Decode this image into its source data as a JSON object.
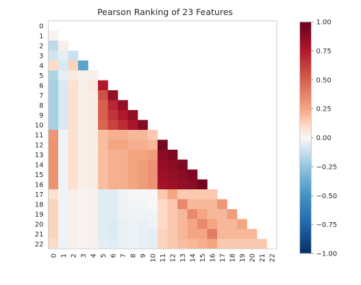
{
  "chart_data": {
    "type": "heatmap",
    "title": "Pearson Ranking of 23 Features",
    "subtitle": "",
    "xlabel": "",
    "ylabel": "",
    "labels": [
      "0",
      "1",
      "2",
      "3",
      "4",
      "5",
      "6",
      "7",
      "8",
      "9",
      "10",
      "11",
      "12",
      "13",
      "14",
      "15",
      "16",
      "17",
      "18",
      "19",
      "20",
      "21",
      "22"
    ],
    "mask": "lower-triangle",
    "grid": false,
    "colormap": "RdBu_r",
    "colorbar": {
      "placement": "right",
      "range": [
        -1.0,
        1.0
      ],
      "ticks": [
        "1.00",
        "0.75",
        "0.50",
        "0.25",
        "0.00",
        "−0.25",
        "−0.50",
        "−0.75",
        "−1.00"
      ],
      "tick_values": [
        1.0,
        0.75,
        0.5,
        0.25,
        0.0,
        -0.25,
        -0.5,
        -0.75,
        -1.0
      ]
    },
    "colors": {
      "negative": "#053061",
      "neutral": "#f7f7f7",
      "positive": "#67001f",
      "frame": "#cccccc"
    },
    "matrix": [
      [],
      [
        0.02
      ],
      [
        -0.15,
        0.03
      ],
      [
        -0.1,
        -0.05,
        -0.12
      ],
      [
        0.1,
        -0.08,
        0.12,
        -0.42
      ],
      [
        -0.18,
        -0.05,
        0.05,
        0.02,
        0.03
      ],
      [
        -0.2,
        -0.08,
        0.08,
        0.03,
        0.05,
        0.75
      ],
      [
        -0.2,
        -0.08,
        0.08,
        0.03,
        0.04,
        0.55,
        0.85
      ],
      [
        -0.2,
        -0.08,
        0.08,
        0.03,
        0.04,
        0.5,
        0.7,
        0.85
      ],
      [
        -0.2,
        -0.08,
        0.08,
        0.03,
        0.04,
        0.5,
        0.65,
        0.75,
        0.85
      ],
      [
        -0.2,
        -0.08,
        0.08,
        0.03,
        0.04,
        0.48,
        0.6,
        0.68,
        0.78,
        0.9
      ],
      [
        0.3,
        -0.02,
        0.08,
        0.03,
        0.04,
        0.18,
        0.22,
        0.22,
        0.2,
        0.2,
        0.15
      ],
      [
        0.32,
        -0.02,
        0.08,
        0.03,
        0.04,
        0.18,
        0.25,
        0.25,
        0.22,
        0.22,
        0.2,
        0.95
      ],
      [
        0.32,
        -0.02,
        0.08,
        0.03,
        0.04,
        0.18,
        0.22,
        0.22,
        0.25,
        0.25,
        0.28,
        0.88,
        0.92
      ],
      [
        0.32,
        -0.02,
        0.08,
        0.03,
        0.04,
        0.18,
        0.22,
        0.22,
        0.25,
        0.28,
        0.32,
        0.85,
        0.88,
        0.92
      ],
      [
        0.32,
        -0.02,
        0.08,
        0.03,
        0.04,
        0.18,
        0.22,
        0.22,
        0.25,
        0.28,
        0.32,
        0.82,
        0.85,
        0.88,
        0.92
      ],
      [
        0.32,
        -0.02,
        0.08,
        0.03,
        0.04,
        0.18,
        0.22,
        0.22,
        0.25,
        0.28,
        0.32,
        0.8,
        0.82,
        0.85,
        0.88,
        0.95
      ],
      [
        0.08,
        -0.02,
        0.03,
        0.01,
        0.02,
        -0.06,
        -0.06,
        -0.02,
        0.0,
        0.0,
        0.0,
        0.15,
        0.25,
        0.15,
        0.15,
        0.15,
        0.15
      ],
      [
        0.12,
        -0.02,
        0.03,
        0.01,
        0.02,
        -0.06,
        -0.06,
        -0.03,
        -0.01,
        -0.01,
        0.0,
        0.1,
        0.15,
        0.35,
        0.2,
        0.2,
        0.2,
        0.3
      ],
      [
        0.12,
        -0.02,
        0.03,
        0.01,
        0.02,
        -0.06,
        -0.06,
        -0.03,
        -0.02,
        -0.02,
        -0.02,
        0.1,
        0.15,
        0.2,
        0.35,
        0.25,
        0.2,
        0.2,
        0.28
      ],
      [
        0.12,
        -0.02,
        0.03,
        0.01,
        0.02,
        -0.06,
        -0.07,
        -0.04,
        -0.03,
        -0.04,
        -0.03,
        0.1,
        0.15,
        0.2,
        0.25,
        0.35,
        0.25,
        0.2,
        0.2,
        0.25
      ],
      [
        0.12,
        -0.02,
        0.03,
        0.01,
        0.02,
        -0.06,
        -0.07,
        -0.04,
        -0.03,
        -0.04,
        -0.05,
        0.12,
        0.15,
        0.2,
        0.25,
        0.25,
        0.4,
        0.2,
        0.2,
        0.2,
        0.2
      ],
      [
        0.1,
        -0.02,
        0.03,
        0.01,
        0.02,
        -0.05,
        -0.06,
        -0.04,
        -0.03,
        -0.04,
        -0.05,
        0.12,
        0.15,
        0.18,
        0.2,
        0.22,
        0.25,
        0.15,
        0.15,
        0.15,
        0.15,
        0.15
      ]
    ]
  }
}
